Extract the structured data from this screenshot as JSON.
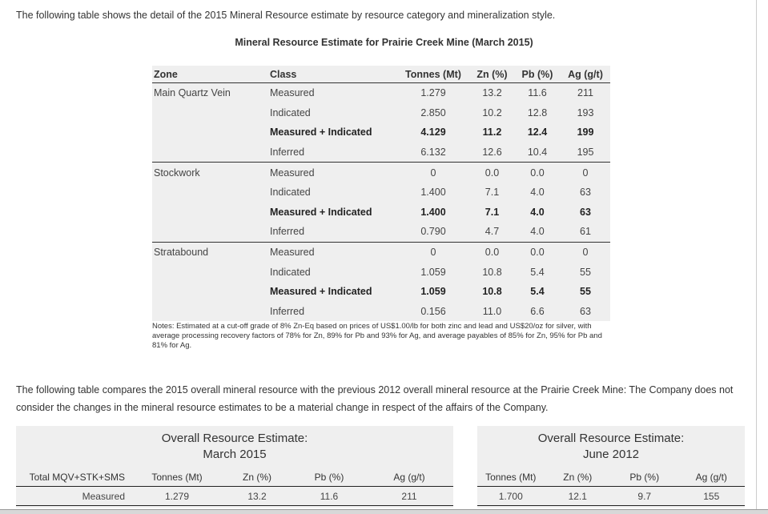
{
  "intro": "The following table shows the detail of the 2015 Mineral Resource estimate by resource category and mineralization style.",
  "table1": {
    "caption": "Mineral Resource Estimate for Prairie Creek Mine (March 2015)",
    "headers": [
      "Zone",
      "Class",
      "Tonnes (Mt)",
      "Zn (%)",
      "Pb (%)",
      "Ag (g/t)"
    ],
    "rows": [
      [
        "Main Quartz Vein",
        "Measured",
        "1.279",
        "13.2",
        "11.6",
        "211"
      ],
      [
        "",
        "Indicated",
        "2.850",
        "10.2",
        "12.8",
        "193"
      ],
      [
        "",
        "Measured + Indicated",
        "4.129",
        "11.2",
        "12.4",
        "199"
      ],
      [
        "",
        "Inferred",
        "6.132",
        "12.6",
        "10.4",
        "195"
      ],
      [
        "Stockwork",
        "Measured",
        "0",
        "0.0",
        "0.0",
        "0"
      ],
      [
        "",
        "Indicated",
        "1.400",
        "7.1",
        "4.0",
        "63"
      ],
      [
        "",
        "Measured + Indicated",
        "1.400",
        "7.1",
        "4.0",
        "63"
      ],
      [
        "",
        "Inferred",
        "0.790",
        "4.7",
        "4.0",
        "61"
      ],
      [
        "Stratabound",
        "Measured",
        "0",
        "0.0",
        "0.0",
        "0"
      ],
      [
        "",
        "Indicated",
        "1.059",
        "10.8",
        "5.4",
        "55"
      ],
      [
        "",
        "Measured + Indicated",
        "1.059",
        "10.8",
        "5.4",
        "55"
      ],
      [
        "",
        "Inferred",
        "0.156",
        "11.0",
        "6.6",
        "63"
      ]
    ],
    "notes": "Notes: Estimated at a cut-off grade of 8% Zn-Eq based on prices of US$1.00/lb for both zinc and lead and US$20/oz for silver, with average processing recovery factors of 78% for Zn, 89% for Pb and 93% for Ag, and average payables of 85% for Zn, 95% for Pb and 81% for Ag."
  },
  "compare_text": "The following table compares the 2015 overall mineral resource with the previous 2012 overall mineral resource at the Prairie Creek Mine: The Company does not consider the changes in the mineral resource estimates to be a material change in respect of the affairs of the Company.",
  "overall2015": {
    "title1": "Overall Resource Estimate:",
    "title2": "March 2015",
    "headers": [
      "Total MQV+STK+SMS",
      "Tonnes (Mt)",
      "Zn (%)",
      "Pb (%)",
      "Ag (g/t)"
    ],
    "rows": [
      [
        "Measured",
        "1.279",
        "13.2",
        "11.6",
        "211"
      ]
    ]
  },
  "overall2012": {
    "title1": "Overall Resource Estimate:",
    "title2": "June 2012",
    "headers": [
      "Tonnes (Mt)",
      "Zn (%)",
      "Pb (%)",
      "Ag (g/t)"
    ],
    "rows": [
      [
        "1.700",
        "12.1",
        "9.7",
        "155"
      ]
    ]
  }
}
